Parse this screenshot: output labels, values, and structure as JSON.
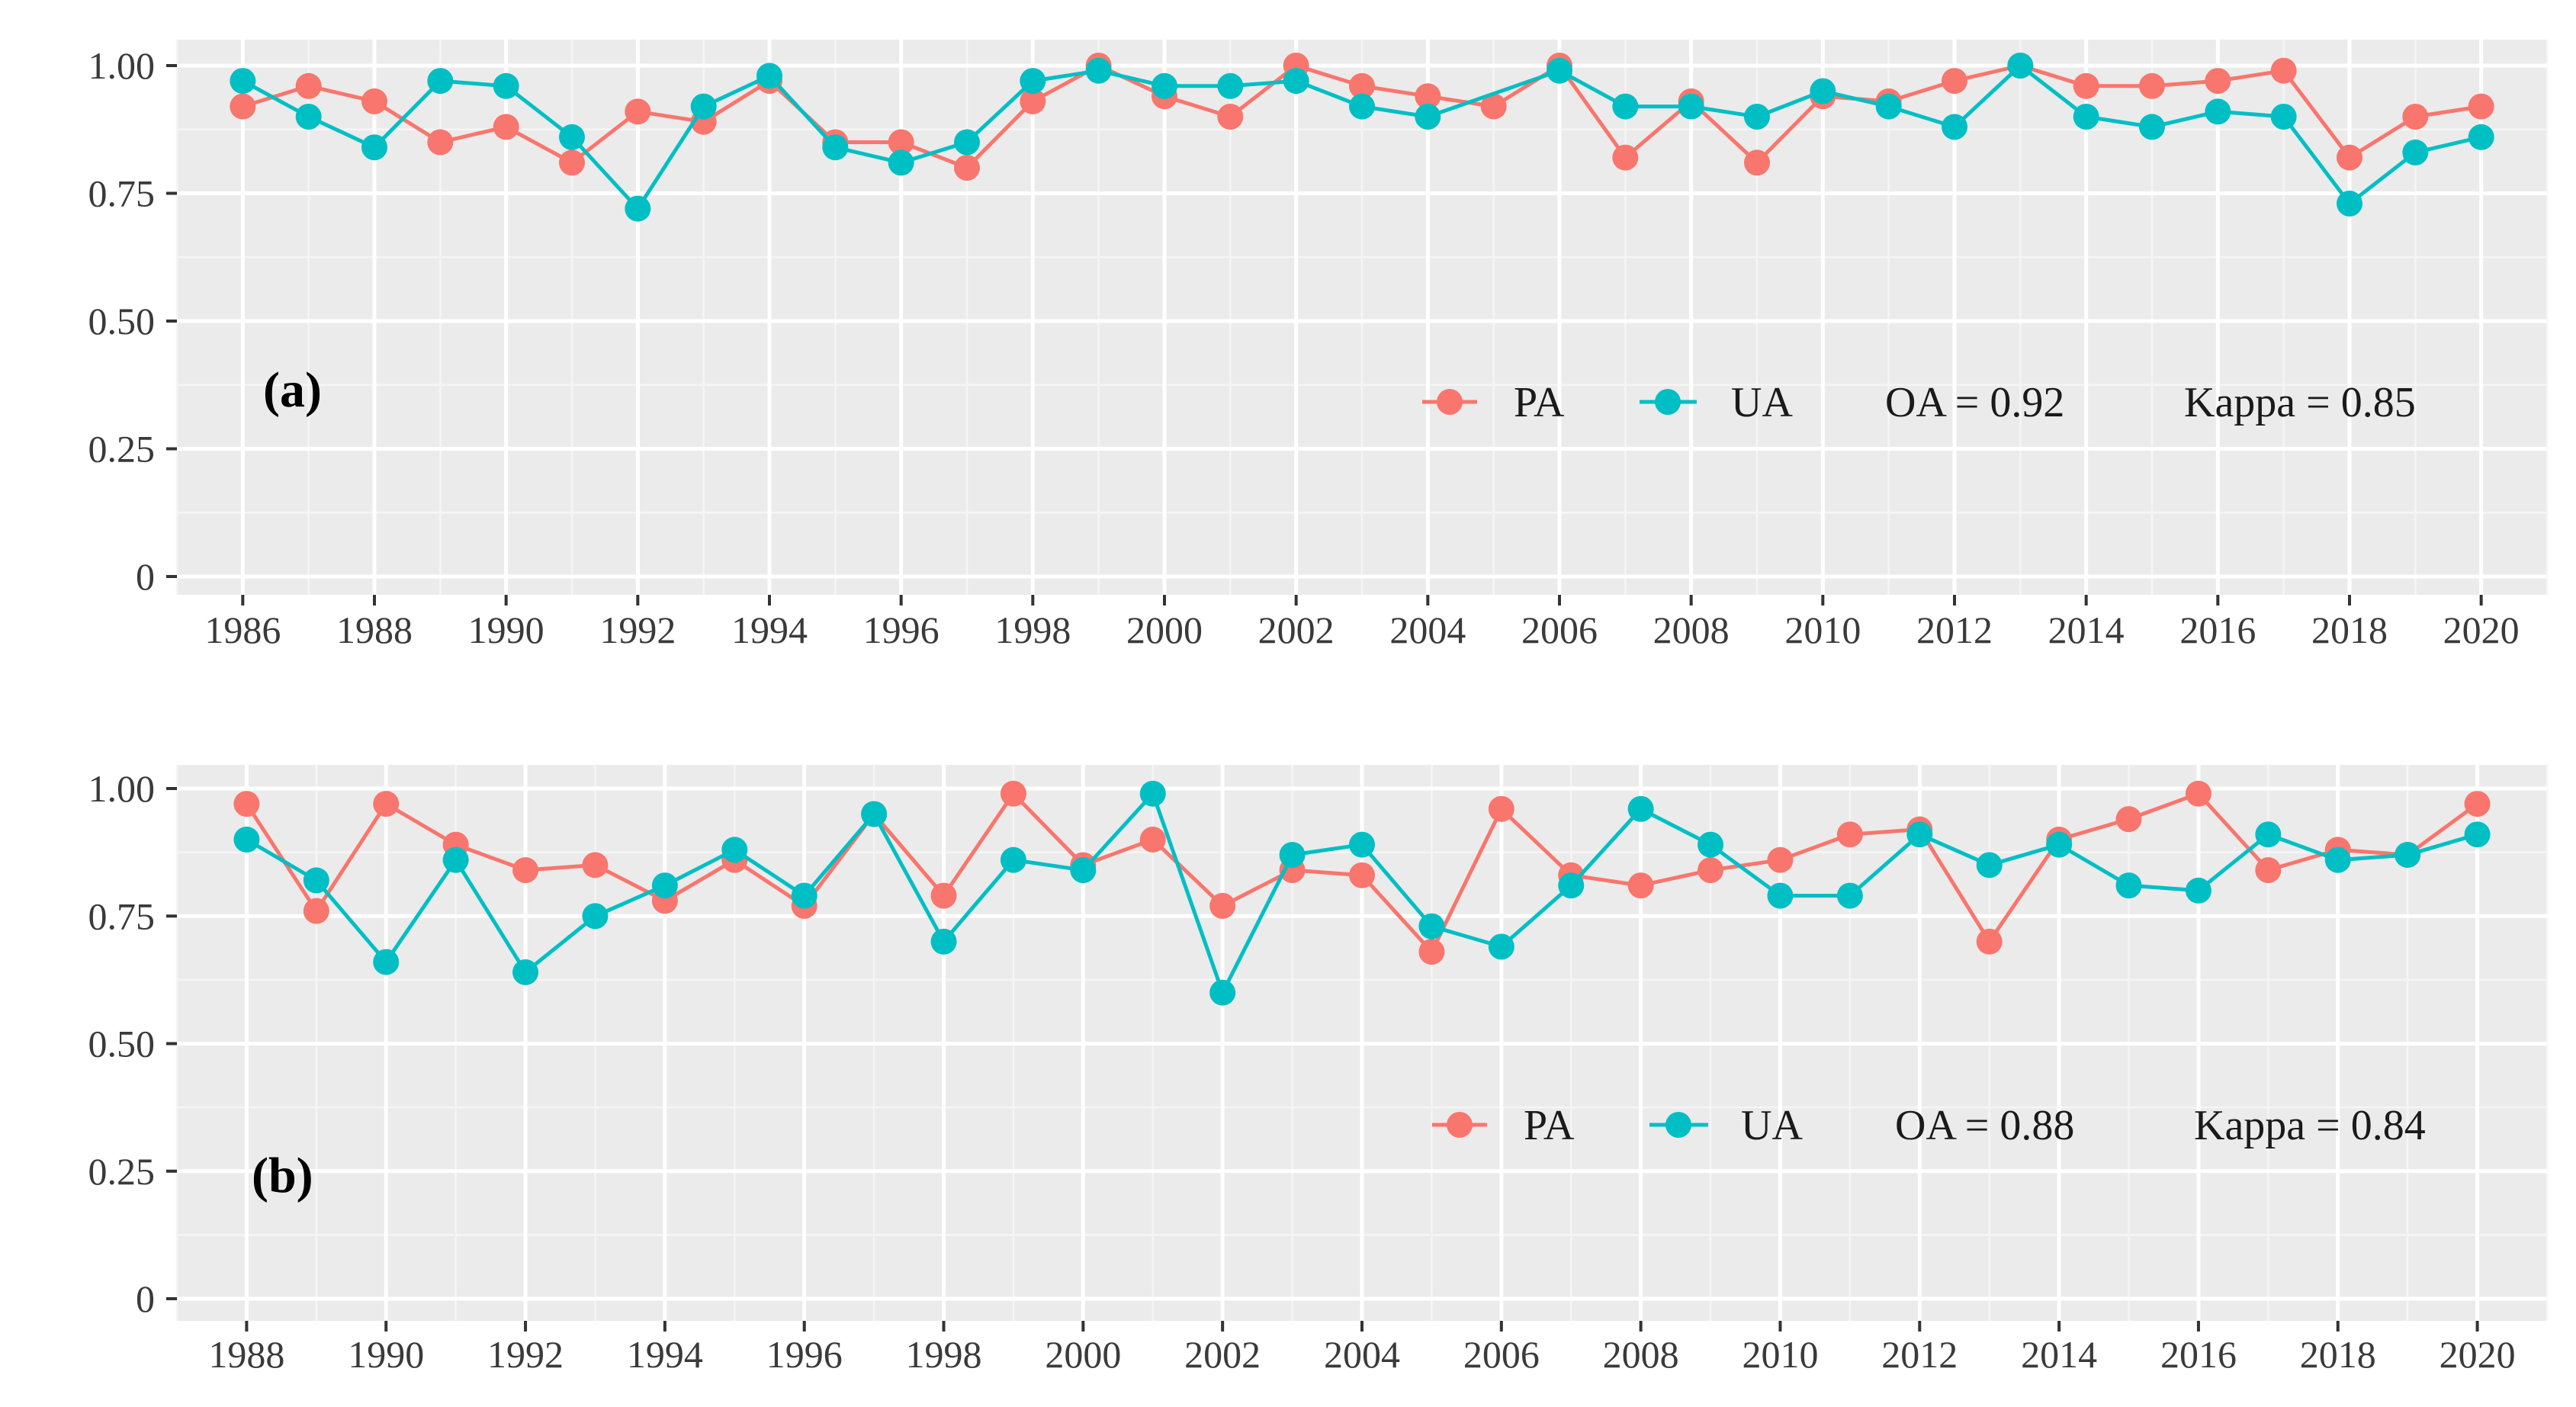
{
  "colors": {
    "panel_bg": "#ebebeb",
    "grid_major": "#ffffff",
    "grid_minor": "#f5f5f5",
    "pa": "#f8766d",
    "ua": "#00bfc4",
    "tick_mark": "#333333",
    "text": "#1a1a1a"
  },
  "chart_data": [
    {
      "type": "line",
      "panel_label": "(a)",
      "title": "",
      "xlabel": "",
      "ylabel": "",
      "x_range": [
        1985,
        2021
      ],
      "ylim": [
        0,
        1.0
      ],
      "y_ticks": [
        0,
        0.25,
        0.5,
        0.75,
        1.0
      ],
      "y_tick_labels": [
        "0",
        "0.25",
        "0.50",
        "0.75",
        "1.00"
      ],
      "x_ticks": [
        1986,
        1988,
        1990,
        1992,
        1994,
        1996,
        1998,
        2000,
        2002,
        2004,
        2006,
        2008,
        2010,
        2012,
        2014,
        2016,
        2018,
        2020
      ],
      "x_tick_labels": [
        "1986",
        "1988",
        "1990",
        "1992",
        "1994",
        "1996",
        "1998",
        "2000",
        "2002",
        "2004",
        "2006",
        "2008",
        "2010",
        "2012",
        "2014",
        "2016",
        "2018",
        "2020"
      ],
      "legend_position": "right, inside plot",
      "stats": {
        "oa": "OA = 0.92",
        "kappa": "Kappa = 0.85"
      },
      "series": [
        {
          "name": "PA",
          "color": "#f8766d",
          "x": [
            1986,
            1987,
            1988,
            1989,
            1990,
            1991,
            1992,
            1993,
            1994,
            1995,
            1996,
            1997,
            1998,
            1999,
            2000,
            2001,
            2002,
            2003,
            2004,
            2005,
            2006,
            2007,
            2008,
            2009,
            2010,
            2011,
            2012,
            2013,
            2014,
            2015,
            2016,
            2017,
            2018,
            2019,
            2020
          ],
          "values": [
            0.92,
            0.96,
            0.93,
            0.85,
            0.88,
            0.81,
            0.91,
            0.89,
            0.97,
            0.85,
            0.85,
            0.8,
            0.93,
            1.0,
            0.94,
            0.9,
            1.0,
            0.96,
            0.94,
            0.92,
            1.0,
            0.82,
            0.93,
            0.81,
            0.94,
            0.93,
            0.97,
            1.0,
            0.96,
            0.96,
            0.97,
            0.99,
            0.82,
            0.9,
            0.92
          ]
        },
        {
          "name": "UA",
          "color": "#00bfc4",
          "x": [
            1986,
            1987,
            1988,
            1989,
            1990,
            1991,
            1992,
            1993,
            1994,
            1995,
            1996,
            1997,
            1998,
            1999,
            2000,
            2001,
            2002,
            2003,
            2004,
            2006,
            2007,
            2008,
            2009,
            2010,
            2011,
            2012,
            2013,
            2014,
            2015,
            2016,
            2017,
            2018,
            2019,
            2020
          ],
          "values": [
            0.97,
            0.9,
            0.84,
            0.97,
            0.96,
            0.86,
            0.72,
            0.92,
            0.98,
            0.84,
            0.81,
            0.85,
            0.97,
            0.99,
            0.96,
            0.96,
            0.97,
            0.92,
            0.9,
            0.99,
            0.92,
            0.92,
            0.9,
            0.95,
            0.92,
            0.88,
            1.0,
            0.9,
            0.88,
            0.91,
            0.9,
            0.73,
            0.83,
            0.86
          ]
        }
      ]
    },
    {
      "type": "line",
      "panel_label": "(b)",
      "title": "",
      "xlabel": "",
      "ylabel": "",
      "x_range": [
        1987,
        2021
      ],
      "ylim": [
        0,
        1.0
      ],
      "y_ticks": [
        0,
        0.25,
        0.5,
        0.75,
        1.0
      ],
      "y_tick_labels": [
        "0",
        "0.25",
        "0.50",
        "0.75",
        "1.00"
      ],
      "x_ticks": [
        1988,
        1990,
        1992,
        1994,
        1996,
        1998,
        2000,
        2002,
        2004,
        2006,
        2008,
        2010,
        2012,
        2014,
        2016,
        2018,
        2020
      ],
      "x_tick_labels": [
        "1988",
        "1990",
        "1992",
        "1994",
        "1996",
        "1998",
        "2000",
        "2002",
        "2004",
        "2006",
        "2008",
        "2010",
        "2012",
        "2014",
        "2016",
        "2018",
        "2020"
      ],
      "legend_position": "right, inside plot",
      "stats": {
        "oa": "OA = 0.88",
        "kappa": "Kappa = 0.84"
      },
      "series": [
        {
          "name": "PA",
          "color": "#f8766d",
          "x": [
            1988,
            1989,
            1990,
            1991,
            1992,
            1993,
            1994,
            1995,
            1996,
            1997,
            1998,
            1999,
            2000,
            2001,
            2002,
            2003,
            2004,
            2005,
            2006,
            2007,
            2008,
            2009,
            2010,
            2011,
            2012,
            2013,
            2014,
            2015,
            2016,
            2017,
            2018,
            2019,
            2020
          ],
          "values": [
            0.97,
            0.76,
            0.97,
            0.89,
            0.84,
            0.85,
            0.78,
            0.86,
            0.77,
            0.95,
            0.79,
            0.99,
            0.85,
            0.9,
            0.77,
            0.84,
            0.83,
            0.68,
            0.96,
            0.83,
            0.81,
            0.84,
            0.86,
            0.91,
            0.92,
            0.7,
            0.9,
            0.94,
            0.99,
            0.84,
            0.88,
            0.87,
            0.97
          ]
        },
        {
          "name": "UA",
          "color": "#00bfc4",
          "x": [
            1988,
            1989,
            1990,
            1991,
            1992,
            1993,
            1994,
            1995,
            1996,
            1997,
            1998,
            1999,
            2000,
            2001,
            2002,
            2003,
            2004,
            2005,
            2006,
            2007,
            2008,
            2009,
            2010,
            2011,
            2012,
            2013,
            2014,
            2015,
            2016,
            2017,
            2018,
            2019,
            2020
          ],
          "values": [
            0.9,
            0.82,
            0.66,
            0.86,
            0.64,
            0.75,
            0.81,
            0.88,
            0.79,
            0.95,
            0.7,
            0.86,
            0.84,
            0.99,
            0.6,
            0.87,
            0.89,
            0.73,
            0.69,
            0.81,
            0.96,
            0.89,
            0.79,
            0.79,
            0.91,
            0.85,
            0.89,
            0.81,
            0.8,
            0.91,
            0.86,
            0.87,
            0.91
          ]
        }
      ]
    }
  ]
}
